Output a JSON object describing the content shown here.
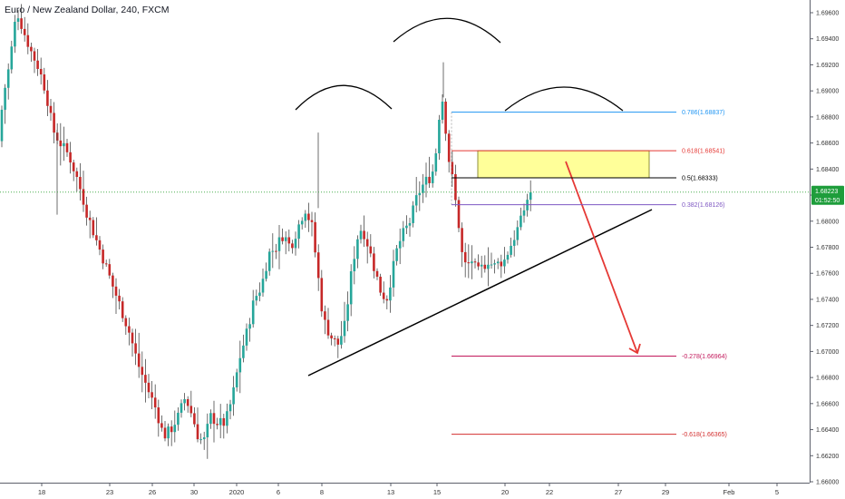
{
  "header": {
    "title": "Euro / New Zealand Dollar, 240, FXCM"
  },
  "colors": {
    "bull": "#26a69a",
    "bear": "#c62828",
    "wick": "#4a4a4a",
    "current_line": "#4caf50",
    "badge_bg": "#1e9d3b",
    "fib_0786": "#2196f3",
    "fib_0618": "#e53935",
    "fib_05": "#000000",
    "fib_0382": "#7e57c2",
    "fib_neg0278": "#c2185b",
    "fib_neg0618": "#d32f2f",
    "box_fill": "#ffff99",
    "box_border": "#8d8d3a",
    "arrow": "#e53935",
    "trendline": "#000000"
  },
  "price_axis": {
    "ticks": [
      "1.69600",
      "1.69400",
      "1.69200",
      "1.69000",
      "1.68800",
      "1.68600",
      "1.68400",
      "1.68200",
      "1.68000",
      "1.67800",
      "1.67600",
      "1.67400",
      "1.67200",
      "1.67000",
      "1.66800",
      "1.66600",
      "1.66400",
      "1.66200",
      "1.66000"
    ],
    "current_price": "1.68223",
    "countdown": "01:52:50"
  },
  "time_axis": {
    "ticks": [
      "18",
      "23",
      "26",
      "30",
      "2020",
      "6",
      "8",
      "13",
      "15",
      "20",
      "22",
      "27",
      "29",
      "Feb",
      "5"
    ]
  },
  "fib_levels": [
    {
      "label": "0.786(1.68837)",
      "value": 1.68837,
      "color_key": "fib_0786"
    },
    {
      "label": "0.618(1.68541)",
      "value": 1.68541,
      "color_key": "fib_0618"
    },
    {
      "label": "0.5(1.68333)",
      "value": 1.68333,
      "color_key": "fib_05"
    },
    {
      "label": "0.382(1.68126)",
      "value": 1.68126,
      "color_key": "fib_0382"
    },
    {
      "label": "-0.278(1.66964)",
      "value": 1.66964,
      "color_key": "fib_neg0278"
    },
    {
      "label": "-0.618(1.66365)",
      "value": 1.66365,
      "color_key": "fib_neg0618"
    }
  ],
  "chart_data": {
    "type": "candlestick",
    "symbol": "EUR/NZD",
    "timeframe": "240",
    "source": "FXCM",
    "ylim": [
      1.66,
      1.697
    ],
    "current_price": 1.68223,
    "pattern": "inverse head and shoulders style arcs with ascending trendline",
    "zone": {
      "from": 1.68333,
      "to": 1.68541
    },
    "target_projection": 1.66964
  }
}
